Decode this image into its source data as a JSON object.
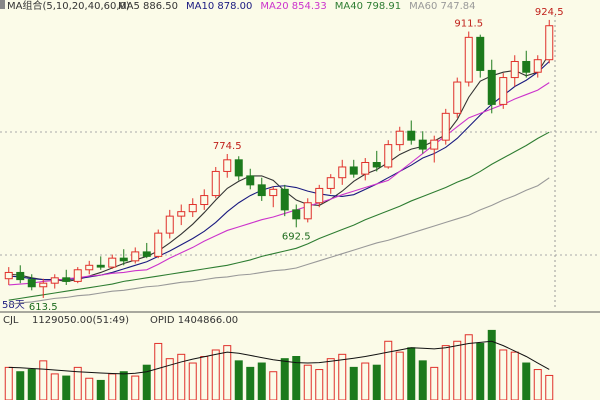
{
  "chart_data": [
    {
      "type": "candlestick",
      "legend_title": "MA组合(5,10,20,40,60,0)",
      "period_label": "58天",
      "ylim": [
        600,
        930
      ],
      "up_color": "#e0302a",
      "down_color": "#1c7a1c",
      "open": [
        635,
        642,
        634,
        626,
        630,
        636,
        632,
        645,
        650,
        648,
        658,
        655,
        665,
        660,
        686,
        705,
        710,
        718,
        728,
        755,
        768,
        750,
        740,
        728,
        735,
        712,
        702,
        720,
        736,
        748,
        760,
        752,
        765,
        760,
        785,
        800,
        790,
        780,
        790,
        820,
        855,
        905,
        868,
        830,
        860,
        878,
        866,
        880
      ],
      "high": [
        648,
        650,
        640,
        635,
        640,
        645,
        648,
        655,
        660,
        662,
        668,
        670,
        675,
        690,
        712,
        718,
        725,
        735,
        760,
        774.5,
        772,
        758,
        748,
        738,
        740,
        718,
        725,
        740,
        752,
        768,
        768,
        770,
        778,
        790,
        805,
        812,
        800,
        795,
        825,
        860,
        911.5,
        908,
        880,
        865,
        885,
        890,
        885,
        924.5
      ],
      "low": [
        628,
        630,
        622,
        613.5,
        624,
        628,
        630,
        640,
        645,
        646,
        650,
        652,
        658,
        658,
        680,
        695,
        704,
        712,
        725,
        748,
        745,
        735,
        722,
        715,
        705,
        692.5,
        698,
        715,
        730,
        740,
        748,
        745,
        755,
        758,
        778,
        785,
        775,
        765,
        785,
        815,
        850,
        860,
        820,
        825,
        850,
        860,
        860,
        876
      ],
      "close": [
        642,
        634,
        626,
        630,
        636,
        632,
        645,
        650,
        648,
        658,
        655,
        665,
        660,
        686,
        705,
        710,
        718,
        728,
        755,
        768,
        750,
        740,
        728,
        735,
        712,
        702,
        720,
        736,
        748,
        760,
        752,
        765,
        760,
        785,
        800,
        790,
        780,
        790,
        820,
        855,
        905,
        868,
        830,
        860,
        878,
        866,
        880,
        918
      ],
      "lines": [
        {
          "name": "MA5 886.50",
          "color": "#333333",
          "values": [
            640,
            639,
            636,
            634,
            634,
            632,
            634,
            638,
            642,
            647,
            652,
            656,
            660,
            666,
            675,
            685,
            696,
            709,
            723,
            736,
            744,
            750,
            750,
            745,
            733,
            723,
            718,
            717,
            724,
            733,
            744,
            752,
            757,
            765,
            774,
            780,
            783,
            789,
            796,
            813,
            838,
            856,
            862,
            866,
            868,
            862,
            866,
            886.5
          ]
        },
        {
          "name": "MA10 878.00",
          "color": "#1a1a80",
          "values": [
            638,
            637,
            635,
            634,
            634,
            634,
            635,
            637,
            639,
            642,
            646,
            650,
            654,
            660,
            666,
            673,
            680,
            688,
            698,
            710,
            720,
            728,
            734,
            738,
            739,
            737,
            733,
            730,
            728,
            727,
            729,
            735,
            741,
            748,
            755,
            762,
            770,
            775,
            782,
            792,
            805,
            818,
            830,
            840,
            850,
            857,
            866,
            878
          ]
        },
        {
          "name": "MA20 854.33",
          "color": "#cc33cc",
          "values": [
            628,
            629,
            630,
            632,
            633,
            635,
            636,
            638,
            639,
            641,
            642,
            644,
            645,
            651,
            658,
            664,
            670,
            677,
            683,
            689,
            693,
            697,
            701,
            704,
            708,
            712,
            716,
            720,
            724,
            729,
            733,
            737,
            741,
            745,
            755,
            765,
            775,
            785,
            795,
            805,
            815,
            820,
            825,
            830,
            836,
            841,
            846,
            854.33
          ]
        },
        {
          "name": "MA40 798.91",
          "color": "#2e7d32",
          "values": [
            611,
            613,
            615,
            617,
            619,
            621,
            623,
            625,
            627,
            629,
            632,
            634,
            636,
            638,
            640,
            642,
            644,
            646,
            648,
            650,
            653,
            656,
            660,
            663,
            666,
            669,
            674,
            680,
            685,
            690,
            695,
            701,
            706,
            711,
            716,
            722,
            727,
            732,
            737,
            743,
            748,
            755,
            763,
            770,
            777,
            784,
            792,
            798.91
          ]
        },
        {
          "name": "MA60 747.84",
          "color": "#999999",
          "values": [
            606,
            608,
            609,
            611,
            613,
            614,
            616,
            617,
            619,
            621,
            622,
            624,
            626,
            627,
            629,
            631,
            632,
            634,
            636,
            637,
            639,
            640,
            642,
            644,
            645,
            647,
            651,
            655,
            659,
            663,
            667,
            671,
            675,
            678,
            682,
            686,
            690,
            694,
            698,
            702,
            706,
            712,
            717,
            723,
            728,
            734,
            739,
            747.84
          ]
        }
      ]
    },
    {
      "type": "volume",
      "title": "CJL",
      "subtitle": "1129050.00(51:49)",
      "ylim": [
        0,
        4000000
      ],
      "values": [
        1500000,
        1300000,
        1400000,
        1800000,
        1200000,
        1100000,
        1500000,
        1000000,
        900000,
        1200000,
        1300000,
        1100000,
        1600000,
        2600000,
        1900000,
        2100000,
        1700000,
        2000000,
        2300000,
        2500000,
        1800000,
        1500000,
        1700000,
        1300000,
        1900000,
        2000000,
        1600000,
        1400000,
        1900000,
        2100000,
        1500000,
        1700000,
        1600000,
        2700000,
        2200000,
        2400000,
        1800000,
        1500000,
        2500000,
        2700000,
        3000000,
        2600000,
        3200000,
        2300000,
        2200000,
        1700000,
        1400000,
        1129050
      ],
      "line": {
        "name": "OPID 1404866.00",
        "color": "#111111",
        "values": [
          1500000,
          1480000,
          1450000,
          1420000,
          1380000,
          1340000,
          1300000,
          1270000,
          1240000,
          1220000,
          1200000,
          1230000,
          1300000,
          1450000,
          1600000,
          1750000,
          1880000,
          1990000,
          2100000,
          2200000,
          2150000,
          2050000,
          1950000,
          1850000,
          1780000,
          1720000,
          1700000,
          1720000,
          1780000,
          1850000,
          1920000,
          2000000,
          2100000,
          2200000,
          2300000,
          2400000,
          2380000,
          2350000,
          2400000,
          2500000,
          2600000,
          2650000,
          2700000,
          2500000,
          2250000,
          2000000,
          1700000,
          1404866
        ]
      }
    }
  ]
}
